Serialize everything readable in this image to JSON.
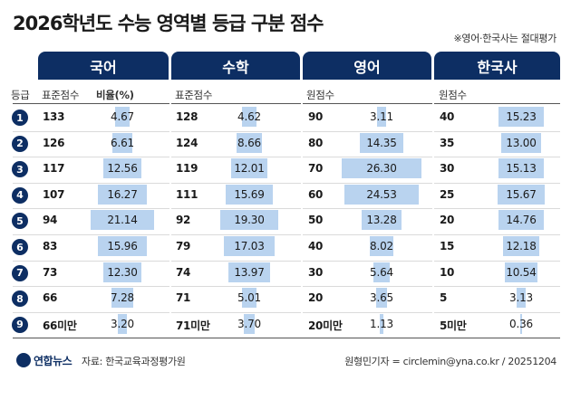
{
  "title": "2026학년도 수능 영역별 등급 구분 점수",
  "note": "※영어·한국사는 절대평가",
  "grade_label": "등급",
  "subjects": {
    "korean": {
      "name": "국어",
      "score_label": "표준점수",
      "ratio_label": "비율(%)",
      "scores": [
        "133",
        "126",
        "117",
        "107",
        "94",
        "83",
        "73",
        "66",
        "66미만"
      ],
      "ratios": [
        "4.67",
        "6.61",
        "12.56",
        "16.27",
        "21.14",
        "15.96",
        "12.30",
        "7.28",
        "3.20"
      ]
    },
    "math": {
      "name": "수학",
      "score_label": "표준점수",
      "scores": [
        "128",
        "124",
        "119",
        "111",
        "92",
        "79",
        "74",
        "71",
        "71미만"
      ],
      "ratios": [
        "4.62",
        "8.66",
        "12.01",
        "15.69",
        "19.30",
        "17.03",
        "13.97",
        "5.01",
        "3.70"
      ]
    },
    "english": {
      "name": "영어",
      "score_label": "원점수",
      "scores": [
        "90",
        "80",
        "70",
        "60",
        "50",
        "40",
        "30",
        "20",
        "20미만"
      ],
      "ratios": [
        "3.11",
        "14.35",
        "26.30",
        "24.53",
        "13.28",
        "8.02",
        "5.64",
        "3.65",
        "1.13"
      ]
    },
    "history": {
      "name": "한국사",
      "score_label": "원점수",
      "scores": [
        "40",
        "35",
        "30",
        "25",
        "20",
        "15",
        "10",
        "5",
        "5미만"
      ],
      "ratios": [
        "15.23",
        "13.00",
        "15.13",
        "15.67",
        "14.76",
        "12.18",
        "10.54",
        "3.13",
        "0.36"
      ]
    }
  },
  "grades": [
    "1",
    "2",
    "3",
    "4",
    "5",
    "6",
    "7",
    "8",
    "9"
  ],
  "footer": {
    "brand": "연합뉴스",
    "source": "자료: 한국교육과정평가원",
    "credit": "원형민기자 = circlemin@yna.co.kr / 20251204"
  },
  "colors": {
    "header": "#0d2e63",
    "bar": "#b9d3ef"
  }
}
